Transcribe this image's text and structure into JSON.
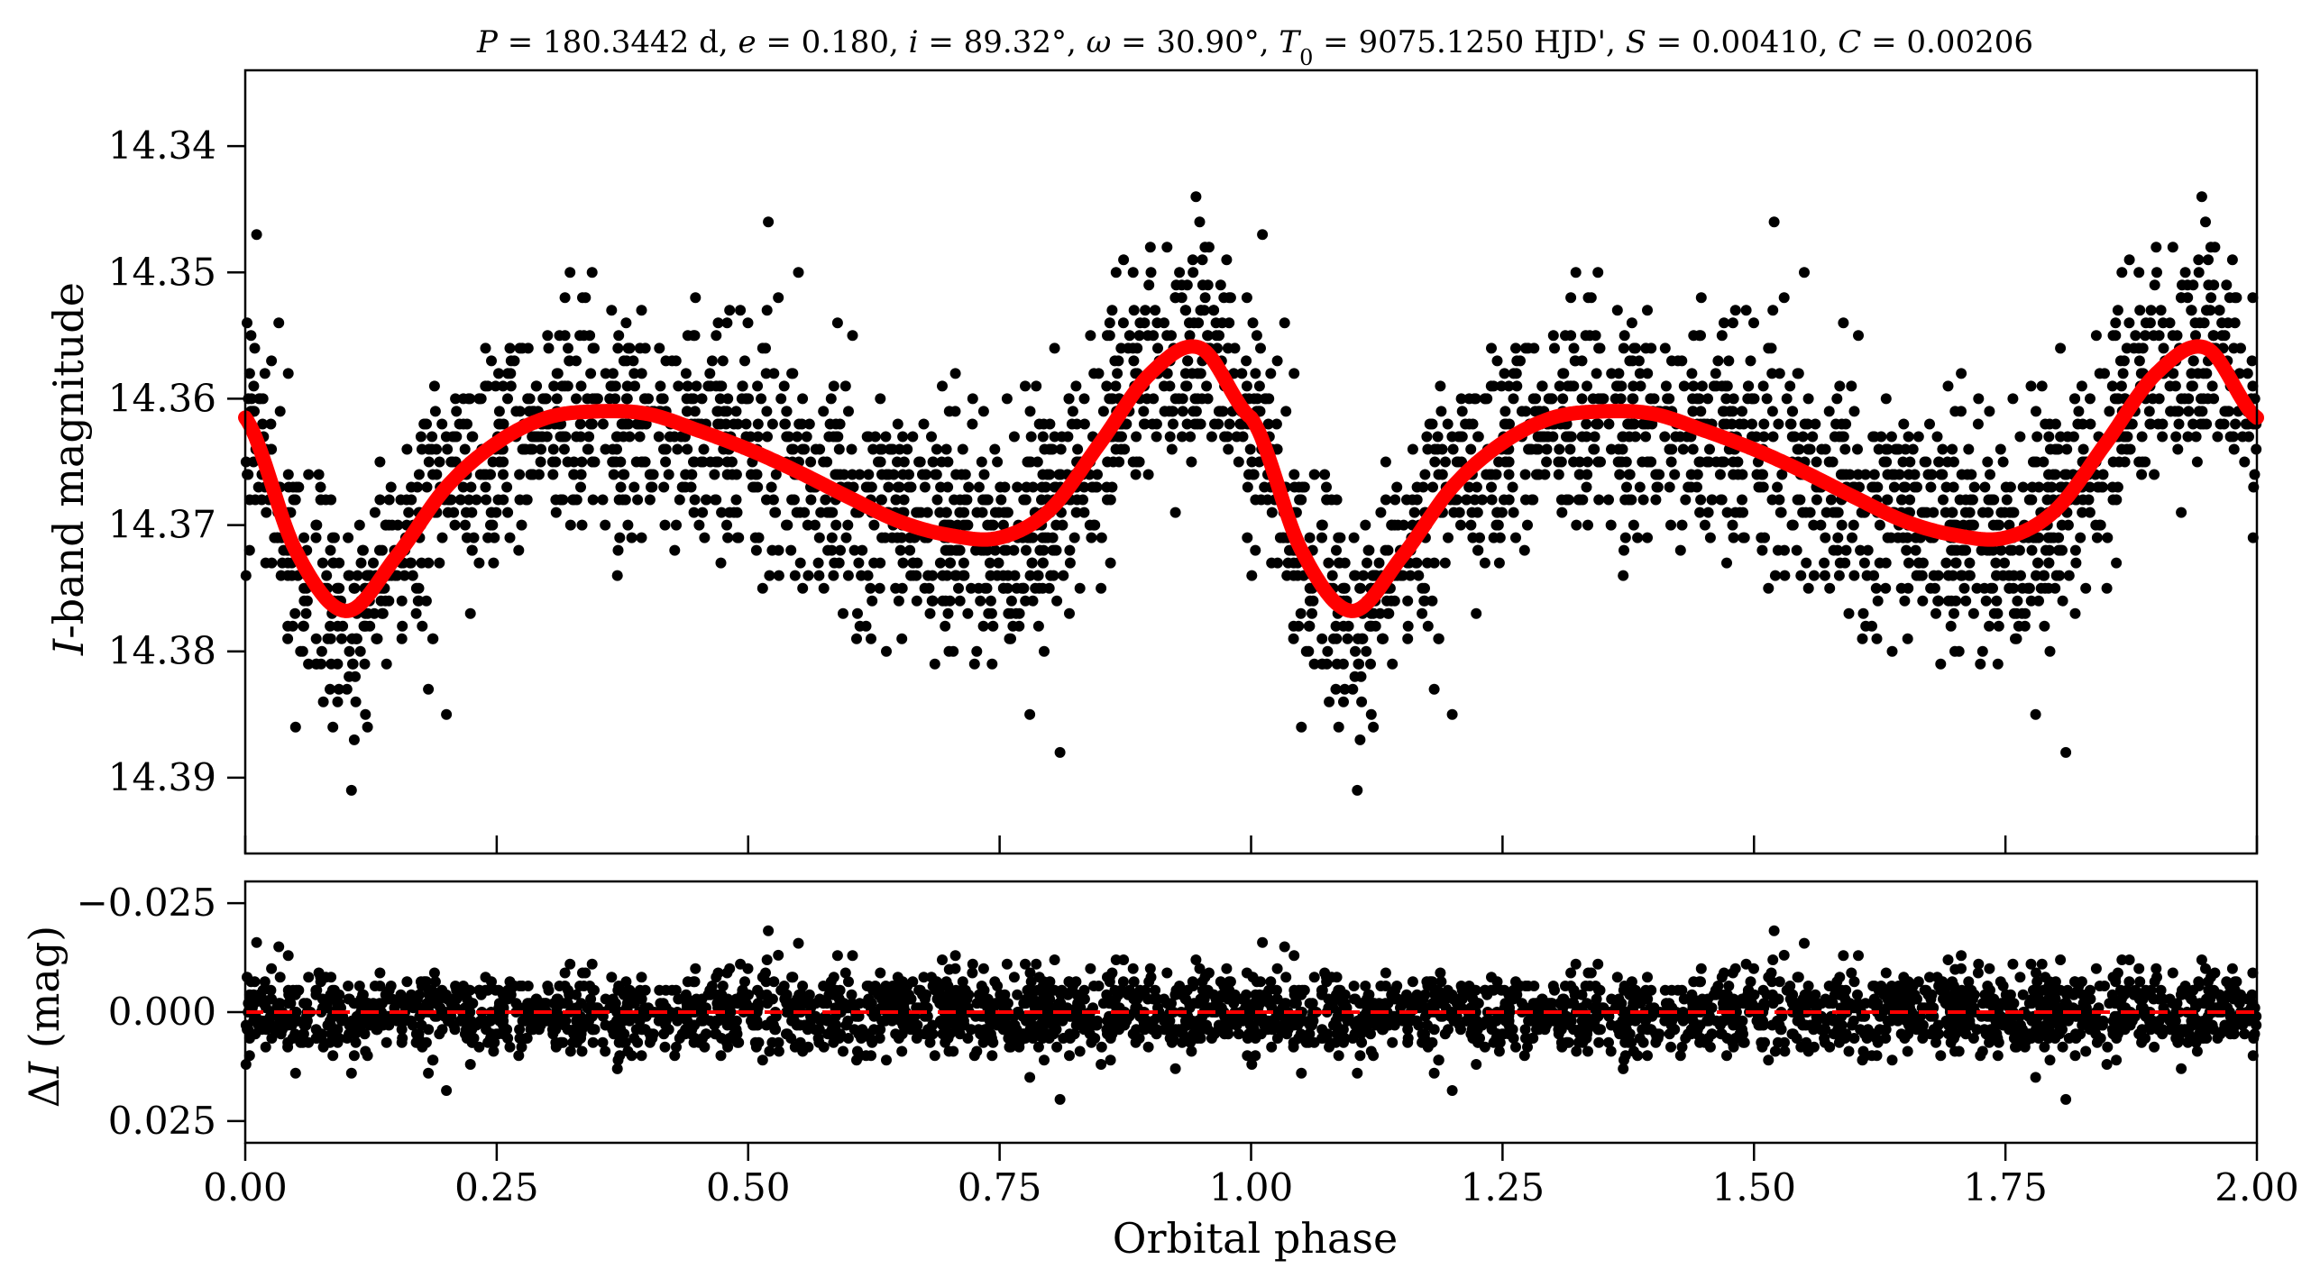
{
  "title": "P = 180.3442 d, e = 0.180, i = 89.32°, ω = 30.90°, T0 = 9075.1250 HJD', S = 0.00410, C = 0.00206",
  "title_parts": {
    "p_sym": "P",
    "p_val": " = 180.3442 d, ",
    "e_sym": "e",
    "e_val": " = 0.180, ",
    "i_sym": "i",
    "i_val": " = 89.32°, ",
    "w_sym": "ω",
    "w_val": " = 30.90°, ",
    "t_sym": "T",
    "t_sub": "0",
    "t_val": " = 9075.1250 HJD', ",
    "s_sym": "S",
    "s_val": " = 0.00410, ",
    "c_sym": "C",
    "c_val": " = 0.00206"
  },
  "xlabel": "Orbital phase",
  "ylabel_top": {
    "italic": "I",
    "rest": "-band magnitude"
  },
  "ylabel_bottom": {
    "delta": "Δ",
    "italic": "I",
    "rest": " (mag)"
  },
  "chart_data": [
    {
      "type": "scatter",
      "panel": "top",
      "ylabel": "I-band magnitude",
      "xlim": [
        0.0,
        2.0
      ],
      "ylim": [
        14.396,
        14.334
      ],
      "y_inverted": true,
      "xticks": [
        0.0,
        0.25,
        0.5,
        0.75,
        1.0,
        1.25,
        1.5,
        1.75,
        2.0
      ],
      "yticks": [
        14.34,
        14.35,
        14.36,
        14.37,
        14.38,
        14.39
      ],
      "ytick_labels": [
        "14.34",
        "14.35",
        "14.36",
        "14.37",
        "14.38",
        "14.39"
      ],
      "point_color": "#000000",
      "model_color": "#ff0000",
      "series": [
        {
          "kind": "model",
          "period": 1.0,
          "x": [
            0.0,
            0.05,
            0.1,
            0.15,
            0.2,
            0.25,
            0.3,
            0.35,
            0.4,
            0.45,
            0.5,
            0.55,
            0.6,
            0.65,
            0.7,
            0.75,
            0.8,
            0.85,
            0.9,
            0.95,
            1.0
          ],
          "values": [
            14.3615,
            14.372,
            14.3768,
            14.3725,
            14.367,
            14.3635,
            14.3615,
            14.361,
            14.3612,
            14.3625,
            14.364,
            14.3658,
            14.3678,
            14.3697,
            14.3708,
            14.371,
            14.3688,
            14.3635,
            14.358,
            14.356,
            14.3615
          ]
        },
        {
          "kind": "observations",
          "n_points": 1500,
          "phase_range": [
            0.0,
            1.0
          ],
          "repeated_periods": 2,
          "scatter_sigma": 0.0045,
          "outliers": [
            {
              "x": 0.05,
              "y": 14.386
            },
            {
              "x": 0.52,
              "y": 14.346
            },
            {
              "x": 0.53,
              "y": 14.352
            },
            {
              "x": 0.55,
              "y": 14.35
            },
            {
              "x": 0.81,
              "y": 14.388
            },
            {
              "x": 0.2,
              "y": 14.385
            },
            {
              "x": 0.37,
              "y": 14.374
            },
            {
              "x": 0.78,
              "y": 14.385
            },
            {
              "x": 0.7,
              "y": 14.361
            }
          ]
        }
      ]
    },
    {
      "type": "scatter",
      "panel": "bottom",
      "ylabel": "ΔI (mag)",
      "xlabel": "Orbital phase",
      "xlim": [
        0.0,
        2.0
      ],
      "ylim": [
        0.03,
        -0.03
      ],
      "y_inverted": true,
      "xticks": [
        0.0,
        0.25,
        0.5,
        0.75,
        1.0,
        1.25,
        1.5,
        1.75,
        2.0
      ],
      "xtick_labels": [
        "0.00",
        "0.25",
        "0.50",
        "0.75",
        "1.00",
        "1.25",
        "1.50",
        "1.75",
        "2.00"
      ],
      "yticks": [
        -0.025,
        0.0,
        0.025
      ],
      "ytick_labels": [
        "−0.025",
        "0.000",
        "0.025"
      ],
      "reference_line": {
        "y": 0.0,
        "style": "dashed",
        "color": "#ff0000"
      },
      "point_color": "#000000",
      "series": [
        {
          "kind": "residuals",
          "n_points": 1500,
          "scatter_sigma": 0.0045
        }
      ]
    }
  ]
}
